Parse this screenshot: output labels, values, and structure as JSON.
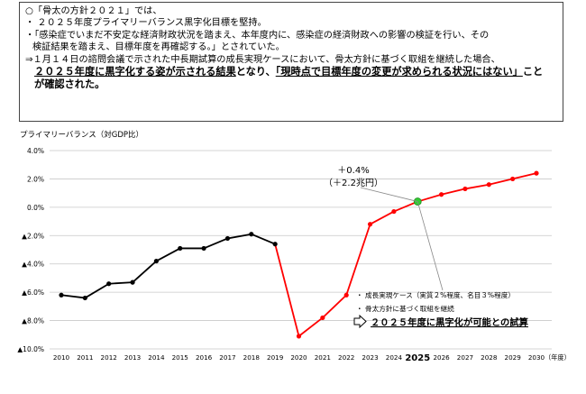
{
  "notes": {
    "line1": "○「骨太の方針２０２１」では、",
    "line2": "・ ２０２５年度プライマリーバランス黒字化目標を堅持。",
    "line3": "・「感染症でいまだ不安定な経済財政状況を踏まえ、本年度内に、感染症の経済財政への影響の検証を行い、その",
    "line4": "検証結果を踏まえ、目標年度を再確認する。」とされていた。",
    "line5": "⇒１月１４日の諮問会議で示された中長期試算の成長実現ケースにおいて、骨太方針に基づく取組を継続した場合、",
    "line6a": "２０２５年度に黒字化する姿が示される結果",
    "line6b": "となり、",
    "line6c": "「現時点で目標年度の変更が求められる状況にはない」",
    "line6d": "こと",
    "line7": "が確認された。"
  },
  "chart_data": {
    "type": "line",
    "ylabel": "プライマリーバランス（対GDP比）",
    "xlabel": "（年度）",
    "x": [
      2010,
      2011,
      2012,
      2013,
      2014,
      2015,
      2016,
      2017,
      2018,
      2019,
      2020,
      2021,
      2022,
      2023,
      2024,
      2025,
      2026,
      2027,
      2028,
      2029,
      2030
    ],
    "x_tick_labels": [
      "2010",
      "2011",
      "2012",
      "2013",
      "2014",
      "2015",
      "2016",
      "2017",
      "2018",
      "2019",
      "2020",
      "2021",
      "2022",
      "2023",
      "2024",
      "2025",
      "2026",
      "2027",
      "2028",
      "2029",
      "2030"
    ],
    "highlighted_x": "2025",
    "y_ticks": [
      4,
      2,
      0,
      -2,
      -4,
      -6,
      -8,
      -10
    ],
    "y_tick_labels": [
      "4.0%",
      "2.0%",
      "0.0%",
      "▲2.0%",
      "▲4.0%",
      "▲6.0%",
      "▲8.0%",
      "▲10.0%"
    ],
    "ylim": [
      -10,
      4
    ],
    "grid": true,
    "series": [
      {
        "color": "#000000",
        "x": [
          2010,
          2011,
          2012,
          2013,
          2014,
          2015,
          2016,
          2017,
          2018,
          2019
        ],
        "values": [
          -6.2,
          -6.4,
          -5.4,
          -5.3,
          -3.8,
          -2.9,
          -2.9,
          -2.2,
          -1.9,
          -2.6
        ]
      },
      {
        "color": "#ff0000",
        "x": [
          2019,
          2020,
          2021,
          2022,
          2023,
          2024,
          2025,
          2026,
          2027,
          2028,
          2029,
          2030
        ],
        "values": [
          -2.6,
          -9.1,
          -7.8,
          -6.2,
          -1.2,
          -0.3,
          0.4,
          0.9,
          1.3,
          1.6,
          2.0,
          2.4
        ]
      }
    ],
    "highlight_point": {
      "x": 2025,
      "y": 0.4,
      "color": "#33cc33"
    },
    "annotations": {
      "callout_line1": "＋0.4%",
      "callout_line2": "（＋2.2兆円）",
      "bullet1": "・ 成長実現ケース（実質２%程度、名目３%程度）",
      "bullet2": "・ 骨太方針に基づく取組を継続",
      "conclusion": "２０２５年度に黒字化が可能との試算"
    }
  }
}
